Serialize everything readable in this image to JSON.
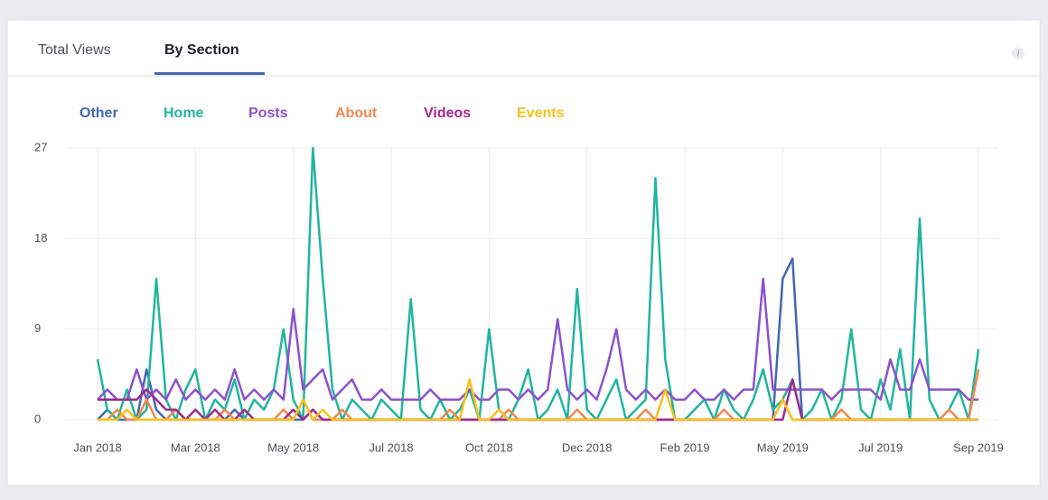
{
  "tabs": [
    "Total Views",
    "By Section"
  ],
  "chart_data": {
    "type": "line",
    "categories": [
      "Jan 2018",
      null,
      null,
      null,
      null,
      null,
      null,
      null,
      null,
      null,
      "Mar 2018",
      null,
      null,
      null,
      null,
      null,
      null,
      null,
      null,
      null,
      "May 2018",
      null,
      null,
      null,
      null,
      null,
      null,
      null,
      null,
      null,
      "Jul 2018",
      null,
      null,
      null,
      null,
      null,
      null,
      null,
      null,
      null,
      "Oct 2018",
      null,
      null,
      null,
      null,
      null,
      null,
      null,
      null,
      null,
      "Dec 2018",
      null,
      null,
      null,
      null,
      null,
      null,
      null,
      null,
      null,
      "Feb 2019",
      null,
      null,
      null,
      null,
      null,
      null,
      null,
      null,
      null,
      "May 2019",
      null,
      null,
      null,
      null,
      null,
      null,
      null,
      null,
      null,
      "Jul 2019",
      null,
      null,
      null,
      null,
      null,
      null,
      null,
      null,
      null,
      "Sep 2019"
    ],
    "ylim": [
      0,
      27
    ],
    "yticks": [
      0,
      9,
      18,
      27
    ],
    "grid": true,
    "series": [
      {
        "name": "Other",
        "color": "#4267b2",
        "values": [
          0,
          1,
          0,
          0,
          0,
          5,
          1,
          0,
          0,
          0,
          0,
          0,
          0,
          0,
          1,
          0,
          0,
          0,
          0,
          0,
          0,
          0,
          1,
          0,
          0,
          0,
          0,
          0,
          0,
          0,
          0,
          0,
          0,
          0,
          0,
          0,
          0,
          0,
          0,
          0,
          0,
          0,
          0,
          0,
          0,
          0,
          0,
          0,
          0,
          0,
          0,
          0,
          0,
          0,
          0,
          0,
          0,
          0,
          0,
          0,
          0,
          0,
          0,
          0,
          0,
          0,
          0,
          0,
          0,
          0,
          14,
          16,
          0,
          0,
          0,
          0,
          0,
          0,
          0,
          0,
          0,
          0,
          0,
          0,
          0,
          0,
          0,
          0,
          0,
          0,
          0
        ]
      },
      {
        "name": "Home",
        "color": "#20b59f",
        "values": [
          6,
          1,
          0,
          3,
          0,
          1,
          14,
          2,
          0,
          3,
          5,
          0,
          2,
          1,
          4,
          0,
          2,
          1,
          3,
          9,
          2,
          0,
          27,
          14,
          3,
          0,
          2,
          1,
          0,
          2,
          1,
          0,
          12,
          1,
          0,
          2,
          0,
          1,
          3,
          0,
          9,
          1,
          0,
          2,
          5,
          0,
          1,
          3,
          0,
          13,
          1,
          0,
          2,
          4,
          0,
          1,
          2,
          24,
          6,
          0,
          0,
          1,
          2,
          0,
          3,
          1,
          0,
          2,
          5,
          1,
          2,
          4,
          0,
          1,
          3,
          0,
          2,
          9,
          1,
          0,
          4,
          1,
          7,
          0,
          20,
          2,
          0,
          1,
          3,
          0,
          7
        ]
      },
      {
        "name": "Posts",
        "color": "#8c52cc",
        "values": [
          2,
          3,
          2,
          2,
          5,
          2,
          3,
          2,
          4,
          2,
          3,
          2,
          3,
          2,
          5,
          2,
          3,
          2,
          3,
          2,
          11,
          3,
          4,
          5,
          2,
          3,
          4,
          2,
          2,
          3,
          2,
          2,
          2,
          2,
          3,
          2,
          2,
          2,
          3,
          2,
          2,
          3,
          3,
          2,
          3,
          2,
          3,
          10,
          3,
          2,
          3,
          2,
          5,
          9,
          3,
          2,
          3,
          2,
          3,
          2,
          2,
          3,
          2,
          2,
          3,
          2,
          3,
          3,
          14,
          3,
          3,
          3,
          3,
          3,
          3,
          2,
          3,
          3,
          3,
          3,
          2,
          6,
          3,
          3,
          6,
          3,
          3,
          3,
          3,
          2,
          2
        ]
      },
      {
        "name": "About",
        "color": "#f5874f",
        "values": [
          0,
          0,
          1,
          0,
          0,
          2,
          0,
          0,
          1,
          0,
          0,
          0,
          0,
          1,
          0,
          0,
          0,
          0,
          0,
          1,
          0,
          2,
          0,
          0,
          0,
          1,
          0,
          0,
          0,
          0,
          0,
          0,
          0,
          0,
          0,
          0,
          1,
          0,
          0,
          0,
          0,
          0,
          1,
          0,
          0,
          0,
          0,
          0,
          0,
          1,
          0,
          0,
          0,
          0,
          0,
          0,
          1,
          0,
          0,
          0,
          0,
          0,
          0,
          0,
          1,
          0,
          0,
          0,
          0,
          0,
          2,
          0,
          0,
          0,
          0,
          0,
          1,
          0,
          0,
          0,
          0,
          0,
          0,
          0,
          0,
          0,
          0,
          1,
          0,
          0,
          5
        ]
      },
      {
        "name": "Videos",
        "color": "#a3288f",
        "values": [
          2,
          2,
          2,
          2,
          2,
          3,
          2,
          1,
          1,
          0,
          1,
          0,
          1,
          0,
          0,
          1,
          0,
          0,
          0,
          0,
          1,
          0,
          1,
          0,
          0,
          0,
          0,
          0,
          0,
          0,
          0,
          0,
          0,
          0,
          0,
          0,
          0,
          0,
          0,
          0,
          0,
          0,
          0,
          0,
          0,
          0,
          0,
          0,
          0,
          0,
          0,
          0,
          0,
          0,
          0,
          0,
          0,
          0,
          0,
          0,
          0,
          0,
          0,
          0,
          0,
          0,
          0,
          0,
          0,
          0,
          0,
          4,
          0,
          0,
          0,
          0,
          0,
          0,
          0,
          0,
          0,
          0,
          0,
          0,
          0,
          0,
          0,
          0,
          0,
          0,
          0
        ]
      },
      {
        "name": "Events",
        "color": "#f7c21b",
        "values": [
          0,
          0,
          0,
          1,
          0,
          0,
          0,
          0,
          0,
          0,
          0,
          0,
          0,
          0,
          0,
          0,
          0,
          0,
          0,
          0,
          0,
          2,
          0,
          1,
          0,
          0,
          0,
          0,
          0,
          0,
          0,
          0,
          0,
          0,
          0,
          0,
          0,
          0,
          4,
          0,
          0,
          1,
          0,
          0,
          0,
          0,
          0,
          0,
          0,
          0,
          0,
          0,
          0,
          0,
          0,
          0,
          0,
          0,
          3,
          0,
          0,
          0,
          0,
          0,
          0,
          0,
          0,
          0,
          0,
          0,
          2,
          0,
          0,
          0,
          0,
          0,
          0,
          0,
          0,
          0,
          0,
          0,
          0,
          0,
          0,
          0,
          0,
          0,
          0,
          0,
          0
        ]
      }
    ]
  }
}
